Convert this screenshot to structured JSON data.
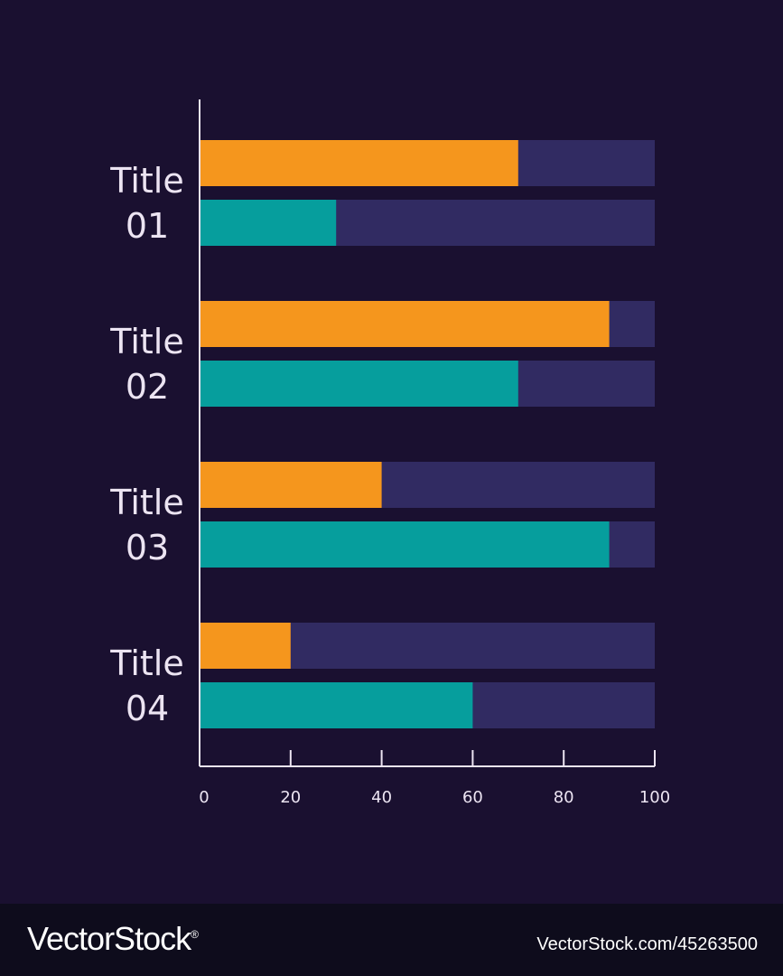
{
  "chart_data": {
    "type": "bar",
    "orientation": "horizontal",
    "stacked_on_track": true,
    "categories": [
      {
        "line1": "Title",
        "line2": "01"
      },
      {
        "line1": "Title",
        "line2": "02"
      },
      {
        "line1": "Title",
        "line2": "03"
      },
      {
        "line1": "Title",
        "line2": "04"
      }
    ],
    "series": [
      {
        "values": [
          70,
          90,
          40,
          20
        ],
        "color": "#f5961d"
      },
      {
        "values": [
          30,
          70,
          90,
          60
        ],
        "color": "#069e9d"
      }
    ],
    "track_color": "#312b62",
    "axis_color": "#ece4f2",
    "xlim": [
      0,
      100
    ],
    "xticks": [
      0,
      20,
      40,
      60,
      80,
      100
    ],
    "xtick_labels": [
      "0",
      "20",
      "40",
      "60",
      "80",
      "100"
    ],
    "grid": false,
    "legend": "none"
  },
  "footer": {
    "brand": "VectorStock",
    "registered": "®",
    "url": "VectorStock.com/45263500"
  }
}
